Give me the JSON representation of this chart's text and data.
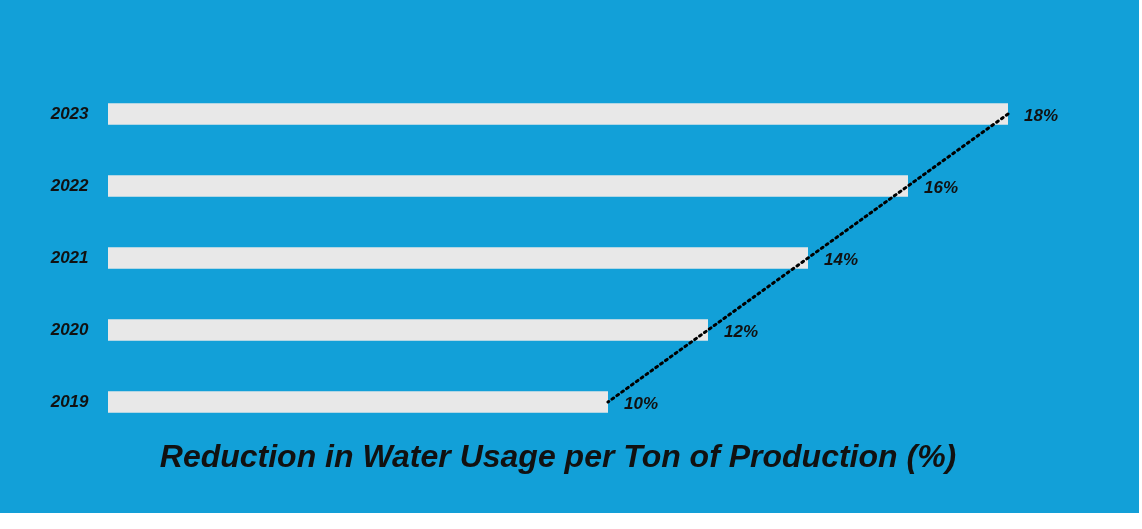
{
  "chart_data": {
    "type": "bar",
    "orientation": "horizontal",
    "title": "Reduction in Water Usage per Ton of Production (%)",
    "categories": [
      "2023",
      "2022",
      "2021",
      "2020",
      "2019"
    ],
    "series": [
      {
        "color": "#e8e8e8",
        "values": [
          18,
          16,
          14,
          12,
          10
        ],
        "value_labels": [
          "18%",
          "16%",
          "14%",
          "12%",
          "10%"
        ]
      },
      {
        "type": "line",
        "color": "#000000",
        "line_style": "dotted",
        "values": [
          18,
          16,
          14,
          12,
          10
        ]
      }
    ],
    "tick_labels": "y",
    "grid": false
  }
}
